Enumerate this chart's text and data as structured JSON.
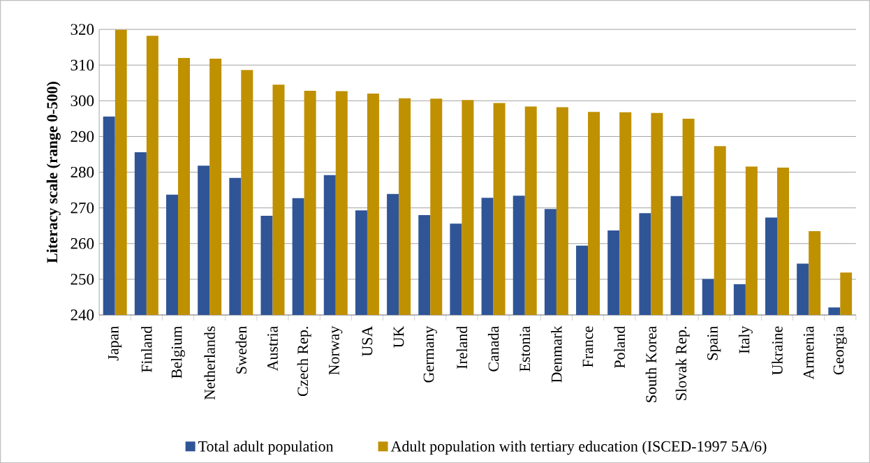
{
  "chart_data": {
    "type": "bar",
    "ylabel": "Literacy scale (range 0-500)",
    "categories": [
      "Japan",
      "Finland",
      "Belgium",
      "Netherlands",
      "Sweden",
      "Austria",
      "Czech Rep.",
      "Norway",
      "USA",
      "UK",
      "Germany",
      "Ireland",
      "Canada",
      "Estonia",
      "Denmark",
      "France",
      "Poland",
      "South Korea",
      "Slovak Rep.",
      "Spain",
      "Italy",
      "Ukraine",
      "Armenia",
      "Georgia"
    ],
    "series": [
      {
        "name": "Total adult population",
        "color": "#2f5597",
        "values": [
          295.6,
          285.6,
          273.7,
          281.8,
          278.4,
          267.8,
          272.7,
          279.2,
          269.3,
          273.9,
          268.0,
          265.6,
          272.8,
          273.4,
          269.7,
          259.4,
          263.7,
          268.5,
          273.3,
          250.1,
          248.6,
          267.3,
          254.4,
          242.1
        ]
      },
      {
        "name": "Adult population with tertiary education (ISCED-1997 5A/6)",
        "color": "#bf9000",
        "values": [
          319.9,
          318.2,
          312.0,
          311.8,
          308.6,
          304.5,
          302.8,
          302.7,
          302.0,
          300.7,
          300.6,
          300.2,
          299.4,
          298.4,
          298.2,
          296.9,
          296.8,
          296.6,
          295.0,
          287.3,
          281.6,
          281.3,
          263.5,
          251.9
        ]
      }
    ],
    "ylim": [
      240,
      320
    ],
    "yticks": [
      240,
      250,
      260,
      270,
      280,
      290,
      300,
      310,
      320
    ],
    "grid": "y",
    "legend": "bottom"
  }
}
